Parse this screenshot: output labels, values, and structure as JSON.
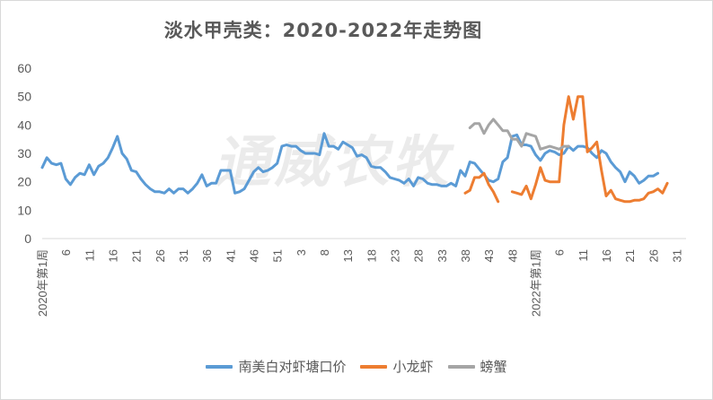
{
  "chart_data": {
    "type": "line",
    "title": "淡水甲壳类：2020-2022年走势图",
    "watermark": "通威农牧",
    "ylim": [
      0,
      60
    ],
    "yticks": [
      "0",
      "10",
      "20",
      "30",
      "40",
      "50",
      "60"
    ],
    "xlabels": [
      {
        "i": 1,
        "text": "2020年第1周"
      },
      {
        "i": 6,
        "text": "6"
      },
      {
        "i": 11,
        "text": "11"
      },
      {
        "i": 16,
        "text": "16"
      },
      {
        "i": 21,
        "text": "21"
      },
      {
        "i": 26,
        "text": "26"
      },
      {
        "i": 31,
        "text": "31"
      },
      {
        "i": 36,
        "text": "36"
      },
      {
        "i": 41,
        "text": "41"
      },
      {
        "i": 46,
        "text": "46"
      },
      {
        "i": 51,
        "text": "51"
      },
      {
        "i": 56,
        "text": "3"
      },
      {
        "i": 61,
        "text": "8"
      },
      {
        "i": 66,
        "text": "13"
      },
      {
        "i": 71,
        "text": "18"
      },
      {
        "i": 76,
        "text": "23"
      },
      {
        "i": 81,
        "text": "28"
      },
      {
        "i": 86,
        "text": "33"
      },
      {
        "i": 91,
        "text": "38"
      },
      {
        "i": 96,
        "text": "43"
      },
      {
        "i": 101,
        "text": "48"
      },
      {
        "i": 106,
        "text": "2022年第1周"
      },
      {
        "i": 111,
        "text": "6"
      },
      {
        "i": 116,
        "text": "11"
      },
      {
        "i": 121,
        "text": "16"
      },
      {
        "i": 126,
        "text": "21"
      },
      {
        "i": 131,
        "text": "26"
      },
      {
        "i": 136,
        "text": "31"
      }
    ],
    "x_count": 138,
    "series": [
      {
        "name": "南美白对虾塘口价",
        "color": "#5b9bd5",
        "start": 1,
        "values": [
          25,
          28.5,
          26.5,
          26,
          26.5,
          21,
          19,
          21.5,
          23,
          22.5,
          26,
          22.5,
          25.5,
          26.5,
          28.5,
          32,
          36,
          30,
          28,
          24,
          23.5,
          21,
          19,
          17.5,
          16.5,
          16.5,
          16,
          17.5,
          16,
          17.5,
          17.5,
          16,
          17.5,
          19.5,
          22.5,
          18.5,
          19.5,
          19.5,
          24,
          24,
          24,
          16,
          16.5,
          17.5,
          20.5,
          23.5,
          25,
          23.5,
          24,
          25,
          26.5,
          32.5,
          33,
          32.5,
          32.5,
          31,
          30,
          30,
          30,
          29.5,
          37,
          32.5,
          32.5,
          31.5,
          34,
          33,
          32,
          29,
          29.5,
          28.5,
          25.5,
          25,
          25,
          23.5,
          21.5,
          21,
          20.5,
          19.5,
          21,
          18.5,
          21.5,
          21,
          19.5,
          19,
          19,
          18.5,
          18.5,
          19.5,
          18.5,
          24,
          22,
          27,
          26.5,
          24.5,
          22.5,
          20.5,
          20,
          21,
          27,
          28.5,
          36,
          36.5,
          33,
          33,
          32.5,
          29.5,
          27.5,
          30,
          31,
          30.5,
          29.5,
          30,
          32.5,
          31,
          32.5,
          32.5,
          32,
          30,
          28.5,
          31,
          30,
          27,
          25,
          23.5,
          20,
          23.5,
          22,
          19.5,
          20.5,
          22,
          22,
          23
        ]
      },
      {
        "name": "小龙虾",
        "color": "#ed7d31",
        "start": 91,
        "values": [
          16,
          17,
          21.5,
          21.5,
          23,
          19,
          16.5,
          13,
          null,
          null,
          16.5,
          16,
          15.5,
          18.5,
          14,
          19,
          25,
          20.5,
          20,
          20,
          20,
          40,
          50,
          42,
          50,
          50,
          30.5,
          32,
          34,
          24,
          15,
          17,
          14,
          13.5,
          13,
          13,
          13.5,
          13.5,
          14,
          16,
          16.5,
          17.5,
          16,
          19.5
        ]
      },
      {
        "name": "螃蟹",
        "color": "#a5a5a5",
        "start": 91,
        "values": [
          null,
          39,
          40.5,
          40.5,
          37,
          40,
          42,
          40,
          38,
          38,
          35,
          35,
          32.5,
          37,
          36.5,
          36,
          31.5,
          32,
          32.5,
          32,
          31.5,
          32.5,
          32.5,
          null,
          32
        ]
      }
    ]
  },
  "legend": {
    "s0": "南美白对虾塘口价",
    "s1": "小龙虾",
    "s2": "螃蟹"
  }
}
